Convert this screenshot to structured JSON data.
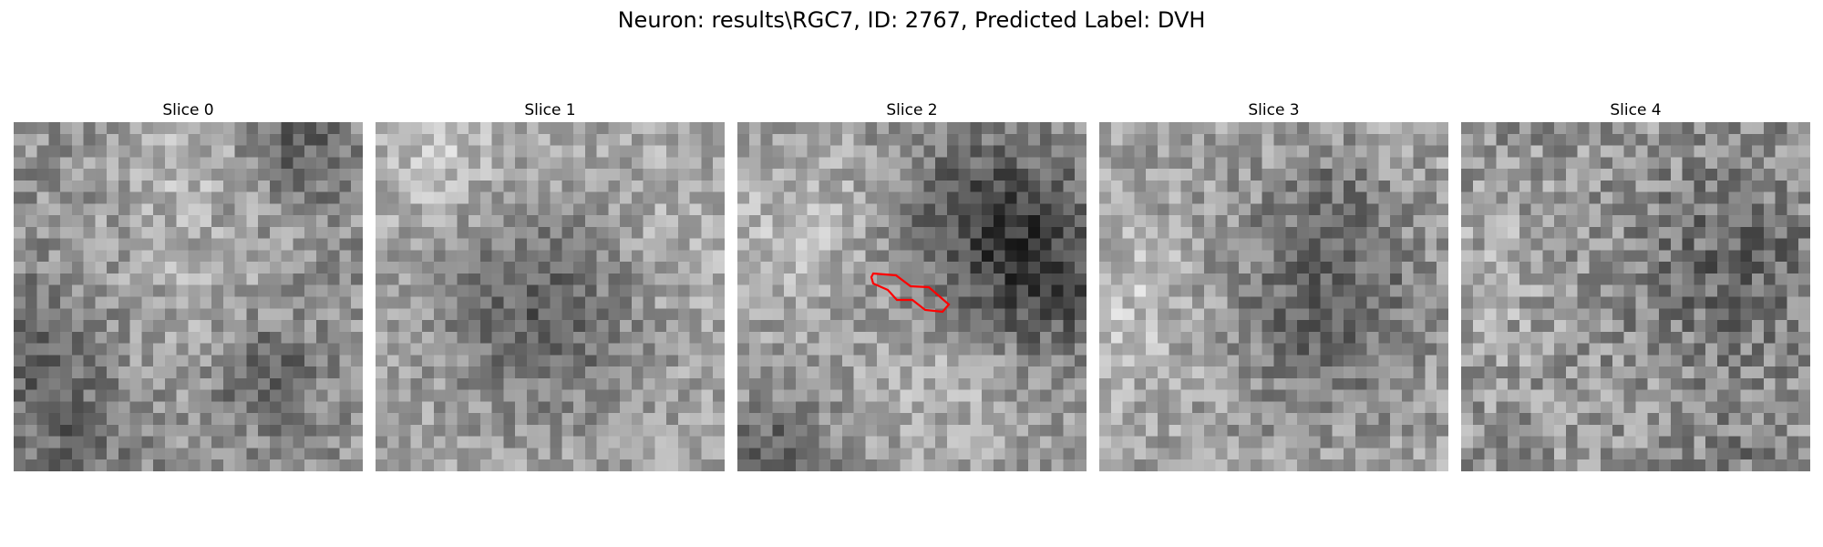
{
  "figure": {
    "title": "Neuron: results\\RGC7, ID: 2767, Predicted Label: DVH"
  },
  "panels": [
    {
      "label": "Slice 0"
    },
    {
      "label": "Slice 1"
    },
    {
      "label": "Slice 2"
    },
    {
      "label": "Slice 3"
    },
    {
      "label": "Slice 4"
    }
  ],
  "image": {
    "colormap": "gray",
    "grid_size": 30
  },
  "overlay": {
    "panel": "Slice 2",
    "color": "#ff0000"
  }
}
